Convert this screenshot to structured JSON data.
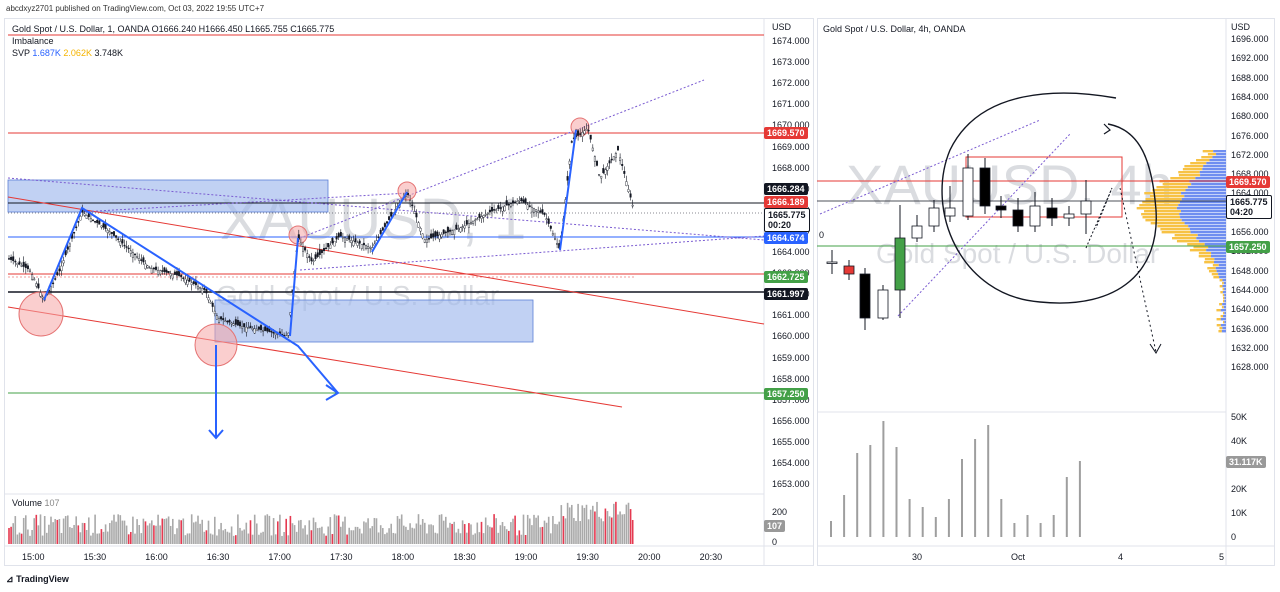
{
  "publisher": "abcdxyz2701 published on TradingView.com, Oct 03, 2022 19:55 UTC+7",
  "footer_logo": "TradingView",
  "left": {
    "symbol_line": "Gold Spot / U.S. Dollar, 1, OANDA",
    "ohlc": "O1666.240 H1666.450 L1665.755 C1665.775",
    "indicator_1": "Imbalance",
    "svp_label": "SVP",
    "svp_up": "1.687K",
    "svp_down": "2.062K",
    "svp_total": "3.748K",
    "watermark_big": "XAUUSD, 1",
    "watermark_small": "Gold Spot / U.S. Dollar",
    "currency": "USD",
    "volume_label": "Volume",
    "volume_value": "107",
    "volume_axis": [
      "200",
      "0"
    ],
    "volume_tag": "107",
    "price_ticks": [
      "1674.000",
      "1673.000",
      "1672.000",
      "1671.000",
      "1670.000",
      "1669.000",
      "1668.000",
      "1667.000",
      "1666.000",
      "1665.000",
      "1664.000",
      "1663.000",
      "1662.000",
      "1661.000",
      "1660.000",
      "1659.000",
      "1658.000",
      "1657.000",
      "1656.000",
      "1655.000",
      "1654.000",
      "1653.000"
    ],
    "tags": {
      "t1669": "1669.570",
      "t1666a": "1666.284",
      "t1666b": "1666.189",
      "t1665": "1665.775",
      "t_count": "00:20",
      "t1664": "1664.674",
      "t1662": "1662.725",
      "t1661": "1661.997",
      "t1657": "1657.250"
    },
    "time_ticks": [
      "15:00",
      "15:30",
      "16:00",
      "16:30",
      "17:00",
      "17:30",
      "18:00",
      "18:30",
      "19:00",
      "19:30",
      "20:00",
      "20:30"
    ]
  },
  "right": {
    "symbol_line": "Gold Spot / U.S. Dollar, 4h, OANDA",
    "watermark_big": "XAUUSD, 4h",
    "watermark_small": "Gold Spot / U.S. Dollar",
    "currency": "USD",
    "price_ticks": [
      "1696.000",
      "1692.000",
      "1688.000",
      "1684.000",
      "1680.000",
      "1676.000",
      "1672.000",
      "1668.000",
      "1664.000",
      "1660.000",
      "1656.000",
      "1652.000",
      "1648.000",
      "1644.000",
      "1640.000",
      "1636.000",
      "1632.000",
      "1628.000"
    ],
    "tags": {
      "t1669": "1669.570",
      "t1665": "1665.775",
      "t_count": "04:20",
      "t1657": "1657.250"
    },
    "left_axis_fragment": "0",
    "volume_ticks": [
      "50K",
      "40K",
      "30K",
      "20K",
      "10K",
      "0"
    ],
    "volume_tag": "31.117K",
    "time_ticks": [
      "30",
      "Oct",
      "4",
      "5"
    ]
  },
  "colors": {
    "red_line": "#e53935",
    "green_line": "#43a047",
    "blue_line": "#2962ff",
    "zone_fill": "#9fb8ec",
    "candle_up": "#26a69a",
    "candle_down": "#000000",
    "svp_up": "#2962ff",
    "svp_down": "#f7c244"
  }
}
